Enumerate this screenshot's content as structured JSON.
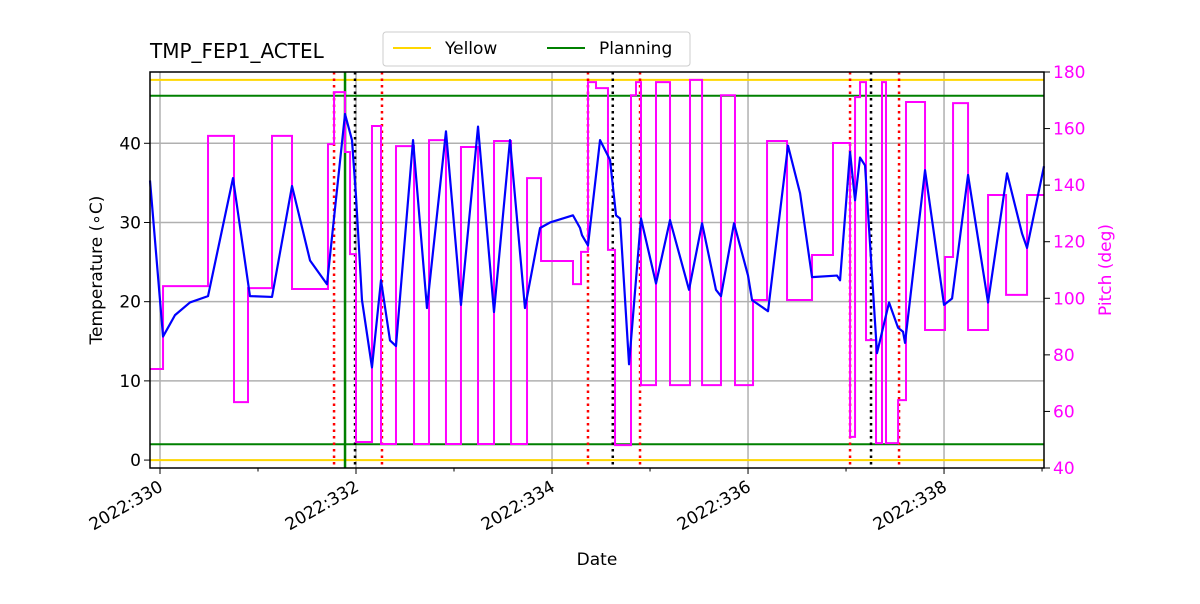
{
  "chart_data": {
    "type": "line",
    "title": "TMP_FEP1_ACTEL",
    "xlabel": "Date",
    "ylabel": "Temperature ($^\\circ$C)",
    "ylabel_display": "Temperature (∘C)",
    "y2label": "Pitch (deg)",
    "xlim": [
      329.898,
      339.02
    ],
    "ylim": [
      -1,
      49
    ],
    "y2lim": [
      40,
      180
    ],
    "grid": true,
    "legend_placement": "top-center, above plot",
    "xticks": [
      330,
      332,
      334,
      336,
      338
    ],
    "xtick_labels": [
      "2022:330",
      "2022:332",
      "2022:334",
      "2022:336",
      "2022:338"
    ],
    "yticks": [
      0,
      10,
      20,
      30,
      40
    ],
    "yticks_labels": [
      "0",
      "10",
      "20",
      "30",
      "40"
    ],
    "y2ticks": [
      40,
      60,
      80,
      100,
      120,
      140,
      160,
      180
    ],
    "y2ticks_labels": [
      "40",
      "60",
      "80",
      "100",
      "120",
      "140",
      "160",
      "180"
    ],
    "colors": {
      "temperature": "#0000ff",
      "pitch": "#ff00ff",
      "yellow": "#ffd700",
      "planning": "#008000",
      "red_marker": "#ff0000",
      "black_marker": "#000000",
      "axis2": "#ff00ff"
    },
    "legend": [
      {
        "name": "Yellow",
        "color": "#ffd700"
      },
      {
        "name": "Planning",
        "color": "#008000"
      }
    ],
    "hlines": [
      {
        "series": "Yellow",
        "y": 48
      },
      {
        "series": "Yellow",
        "y": 0
      },
      {
        "series": "Planning",
        "y": 46
      },
      {
        "series": "Planning",
        "y": 2
      }
    ],
    "vlines": {
      "red_dotted": [
        331.776,
        332.265,
        334.367,
        334.898,
        337.041,
        337.541
      ],
      "black_dotted": [
        331.99,
        334.62,
        337.255
      ],
      "green_solid": [
        331.888
      ]
    },
    "temperature": {
      "x": [
        329.898,
        330.031,
        330.153,
        330.306,
        330.49,
        330.745,
        330.918,
        331.143,
        331.347,
        331.531,
        331.704,
        331.888,
        331.959,
        332.0,
        332.061,
        332.163,
        332.255,
        332.347,
        332.408,
        332.582,
        332.724,
        332.918,
        333.071,
        333.245,
        333.408,
        333.571,
        333.724,
        333.878,
        333.98,
        334.214,
        334.286,
        334.306,
        334.367,
        334.49,
        334.592,
        334.612,
        334.653,
        334.694,
        334.786,
        334.908,
        335.061,
        335.204,
        335.398,
        335.531,
        335.673,
        335.724,
        335.857,
        336.0,
        336.041,
        336.204,
        336.408,
        336.531,
        336.653,
        336.908,
        336.939,
        337.041,
        337.092,
        337.143,
        337.194,
        337.316,
        337.439,
        337.531,
        337.582,
        337.602,
        337.806,
        338.0,
        338.082,
        338.245,
        338.449,
        338.643,
        338.796,
        338.847,
        339.02
      ],
      "y": [
        35.3,
        15.6,
        18.3,
        19.9,
        20.7,
        35.6,
        20.7,
        20.6,
        34.6,
        25.2,
        22.2,
        43.7,
        40.4,
        33.3,
        20.2,
        11.7,
        22.7,
        15.1,
        14.4,
        40.4,
        19.2,
        41.5,
        19.6,
        42.1,
        18.7,
        40.4,
        19.2,
        29.3,
        30.0,
        30.9,
        29.3,
        28.4,
        27.1,
        40.4,
        37.9,
        35.6,
        30.9,
        30.5,
        12.1,
        30.5,
        22.3,
        30.3,
        21.5,
        29.9,
        21.5,
        20.7,
        29.9,
        23.3,
        20.2,
        18.8,
        39.7,
        33.7,
        23.1,
        23.3,
        22.7,
        38.9,
        32.8,
        38.2,
        37.2,
        13.5,
        19.9,
        16.7,
        16.2,
        14.8,
        36.6,
        19.6,
        20.4,
        36.0,
        19.9,
        36.2,
        28.6,
        26.8,
        37.1
      ]
    },
    "pitch": {
      "step": "post",
      "x": [
        329.898,
        330.031,
        330.49,
        330.755,
        330.898,
        331.143,
        331.347,
        331.714,
        331.776,
        331.888,
        331.939,
        332.0,
        332.163,
        332.255,
        332.408,
        332.592,
        332.745,
        332.918,
        333.071,
        333.245,
        333.408,
        333.582,
        333.745,
        333.888,
        334.214,
        334.296,
        334.367,
        334.449,
        334.571,
        334.643,
        334.806,
        334.857,
        334.908,
        335.061,
        335.204,
        335.408,
        335.531,
        335.724,
        335.867,
        336.051,
        336.194,
        336.398,
        336.653,
        336.867,
        337.041,
        337.092,
        337.143,
        337.204,
        337.306,
        337.367,
        337.408,
        337.531,
        337.612,
        337.806,
        338.01,
        338.092,
        338.245,
        338.449,
        338.633,
        338.847,
        339.02
      ],
      "y": [
        75.0,
        104.3,
        157.4,
        63.3,
        103.6,
        157.4,
        103.3,
        154.5,
        172.9,
        151.7,
        115.6,
        49.2,
        160.9,
        48.5,
        153.8,
        48.5,
        155.9,
        48.5,
        153.5,
        48.5,
        155.6,
        48.5,
        142.5,
        113.2,
        105.0,
        116.4,
        176.4,
        174.3,
        117.1,
        48.1,
        171.8,
        176.4,
        69.3,
        176.4,
        69.3,
        177.2,
        69.3,
        171.8,
        69.3,
        99.4,
        155.6,
        99.4,
        115.3,
        154.9,
        51.0,
        171.1,
        176.4,
        85.2,
        48.8,
        176.4,
        48.8,
        64.0,
        169.4,
        88.8,
        114.6,
        169.0,
        88.8,
        136.5,
        101.2,
        136.5,
        136.5
      ]
    }
  }
}
